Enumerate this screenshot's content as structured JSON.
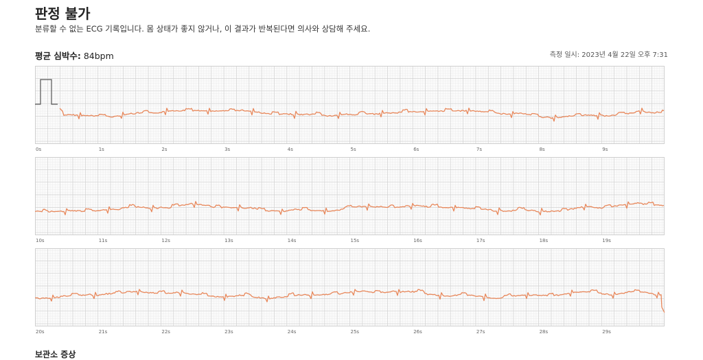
{
  "report": {
    "title": "판정 불가",
    "description": "분류할 수 없는 ECG 기록입니다. 몸 상태가 좋지 않거나, 이 결과가 반복된다면 의사와 상담해 주세요.",
    "heart_rate_label": "평균 심박수:",
    "heart_rate_value": "84bpm",
    "measured_at": "측정 일시: 2023년 4월 22일 오후 7:31",
    "next_section_label": "보관소 증상"
  },
  "ecg": {
    "trace_color": "#e8875a",
    "grid_minor_color": "#ececec",
    "grid_major_color": "#d2d2d2",
    "strips": [
      {
        "ticks": [
          "0s",
          "1s",
          "2s",
          "3s",
          "4s",
          "5s",
          "6s",
          "7s",
          "8s",
          "9s"
        ],
        "calibration_pulse": true
      },
      {
        "ticks": [
          "10s",
          "11s",
          "12s",
          "13s",
          "14s",
          "15s",
          "16s",
          "17s",
          "18s",
          "19s"
        ],
        "calibration_pulse": false
      },
      {
        "ticks": [
          "20s",
          "21s",
          "22s",
          "23s",
          "24s",
          "25s",
          "26s",
          "27s",
          "28s",
          "29s"
        ],
        "calibration_pulse": false
      }
    ]
  }
}
